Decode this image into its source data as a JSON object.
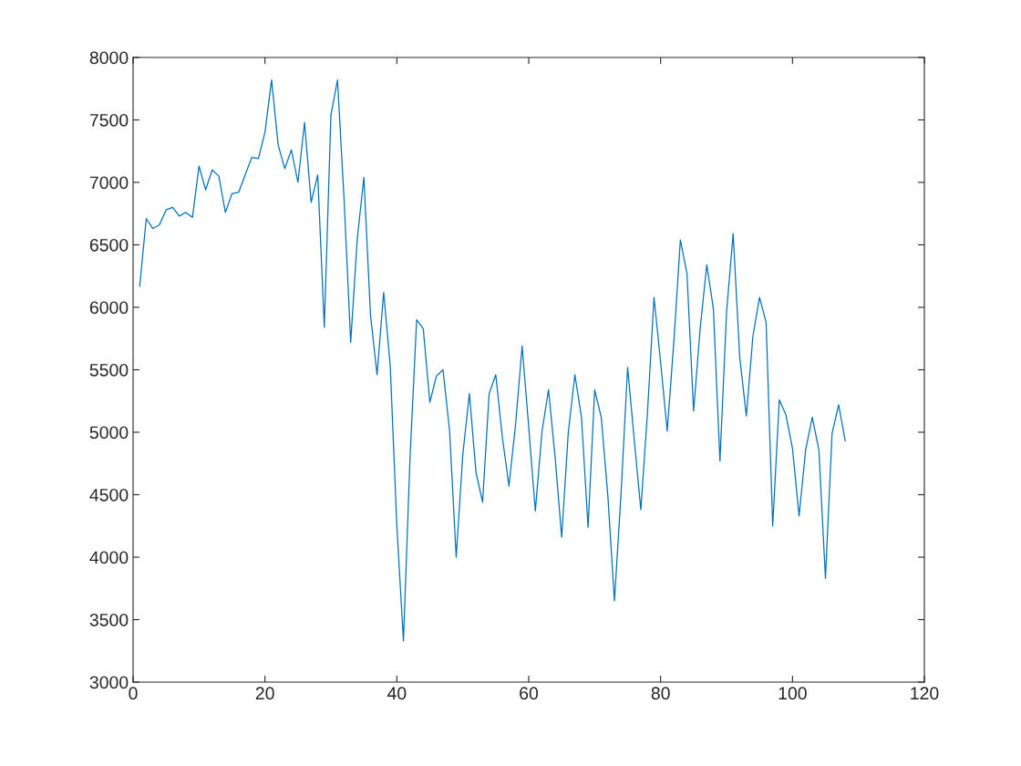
{
  "chart_data": {
    "type": "line",
    "xlim": [
      0,
      120
    ],
    "xticks": [
      0,
      20,
      40,
      60,
      80,
      100,
      120
    ],
    "ylim": [
      3000,
      8000
    ],
    "yticks": [
      3000,
      3500,
      4000,
      4500,
      5000,
      5500,
      6000,
      6500,
      7000,
      7500,
      8000
    ],
    "grid": false,
    "marker": "none",
    "line_style": "solid",
    "x": [
      1,
      2,
      3,
      4,
      5,
      6,
      7,
      8,
      9,
      10,
      11,
      12,
      13,
      14,
      15,
      16,
      17,
      18,
      19,
      20,
      21,
      22,
      23,
      24,
      25,
      26,
      27,
      28,
      29,
      30,
      31,
      32,
      33,
      34,
      35,
      36,
      37,
      38,
      39,
      40,
      41,
      42,
      43,
      44,
      45,
      46,
      47,
      48,
      49,
      50,
      51,
      52,
      53,
      54,
      55,
      56,
      57,
      58,
      59,
      60,
      61,
      62,
      63,
      64,
      65,
      66,
      67,
      68,
      69,
      70,
      71,
      72,
      73,
      74,
      75,
      76,
      77,
      78,
      79,
      80,
      81,
      82,
      83,
      84,
      85,
      86,
      87,
      88,
      89,
      90,
      91,
      92,
      93,
      94,
      95,
      96,
      97,
      98,
      99,
      100,
      101,
      102,
      103,
      104,
      105,
      106,
      107,
      108
    ],
    "series": [
      {
        "color": "#0072bd",
        "values": [
          6170,
          6710,
          6630,
          6660,
          6780,
          6800,
          6730,
          6760,
          6720,
          7130,
          6940,
          7100,
          7050,
          6760,
          6910,
          6920,
          7060,
          7200,
          7190,
          7400,
          7820,
          7300,
          7110,
          7260,
          7000,
          7480,
          6840,
          7060,
          5840,
          7540,
          7820,
          6860,
          5720,
          6550,
          7040,
          5940,
          5460,
          6120,
          5530,
          4250,
          3330,
          4800,
          5900,
          5830,
          5240,
          5450,
          5500,
          5010,
          4000,
          4820,
          5310,
          4680,
          4440,
          5310,
          5460,
          4960,
          4570,
          5060,
          5690,
          5040,
          4370,
          5000,
          5340,
          4800,
          4160,
          5000,
          5460,
          5120,
          4240,
          5340,
          5120,
          4490,
          3650,
          4510,
          5520,
          4940,
          4380,
          5150,
          6080,
          5560,
          5010,
          5720,
          6540,
          6270,
          5170,
          5830,
          6340,
          5990,
          4770,
          5960,
          6590,
          5600,
          5130,
          5770,
          6080,
          5880,
          4250,
          5260,
          5140,
          4870,
          4330,
          4860,
          5120,
          4860,
          3830,
          4990,
          5220,
          4930
        ]
      }
    ]
  }
}
